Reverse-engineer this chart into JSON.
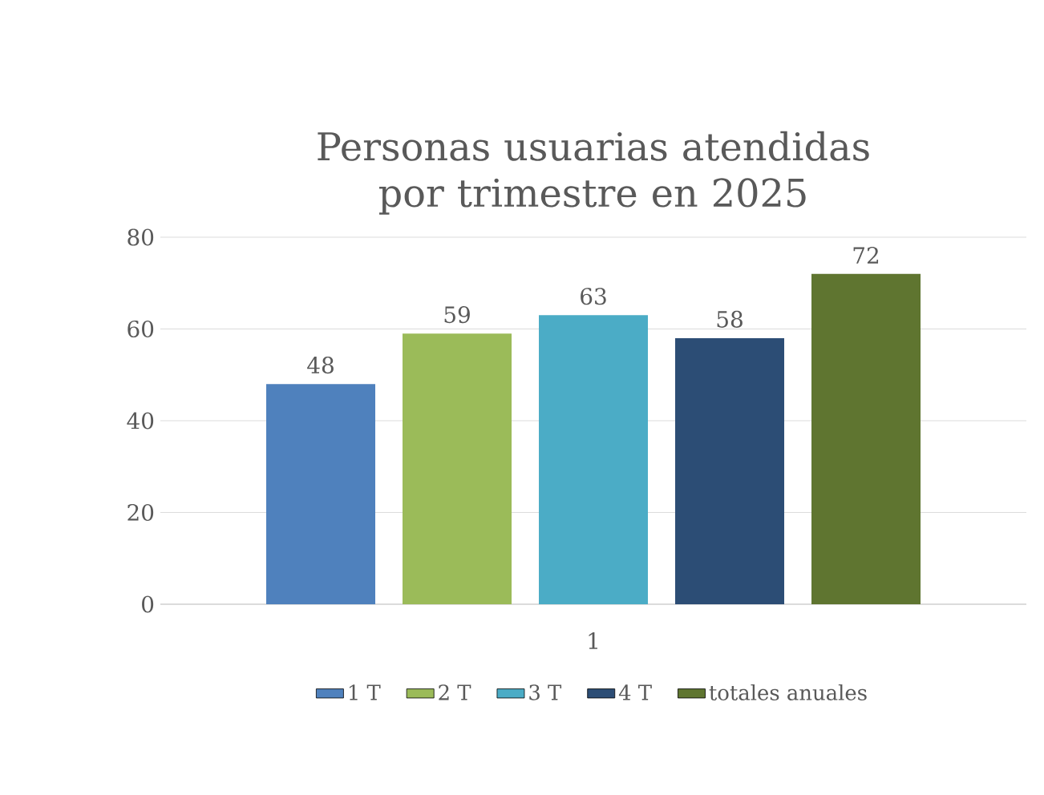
{
  "chart_data": {
    "type": "bar",
    "title": "Personas usuarias atendidas por trimestre en 2025",
    "categories": [
      "1"
    ],
    "series": [
      {
        "name": "1 T",
        "color": "#4f81bd",
        "values": [
          48
        ]
      },
      {
        "name": "2 T",
        "color": "#9bbb59",
        "values": [
          59
        ]
      },
      {
        "name": "3 T",
        "color": "#4bacc6",
        "values": [
          63
        ]
      },
      {
        "name": "4 T",
        "color": "#2c4d75",
        "values": [
          58
        ]
      },
      {
        "name": "totales anuales",
        "color": "#5f7530",
        "values": [
          72
        ]
      }
    ],
    "ylim": [
      0,
      80
    ],
    "yticks": [
      0,
      20,
      40,
      60,
      80
    ],
    "grid": "y",
    "legend": "bottom",
    "data_labels": true
  }
}
